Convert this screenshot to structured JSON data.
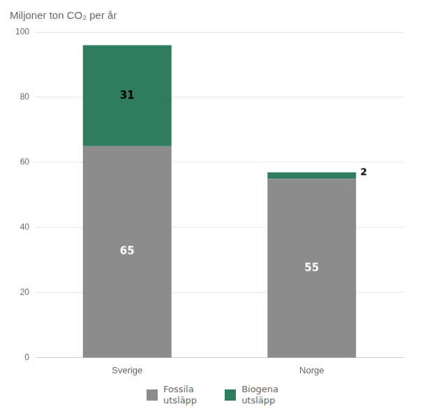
{
  "chart_data": {
    "type": "bar",
    "stacked": true,
    "title": "Miljoner ton CO₂ per år",
    "categories": [
      "Sverige",
      "Norge"
    ],
    "series": [
      {
        "name": "Fossila\nutsläpp",
        "color": "#8C8C8C",
        "values": [
          65,
          55
        ]
      },
      {
        "name": "Biogena\nutsläpp",
        "color": "#2E7D5E",
        "values": [
          31,
          2
        ]
      }
    ],
    "ylim": [
      0,
      100
    ],
    "yticks": [
      0,
      20,
      40,
      60,
      80,
      100
    ],
    "grid": true,
    "legend": "bottom",
    "data_labels": true
  }
}
